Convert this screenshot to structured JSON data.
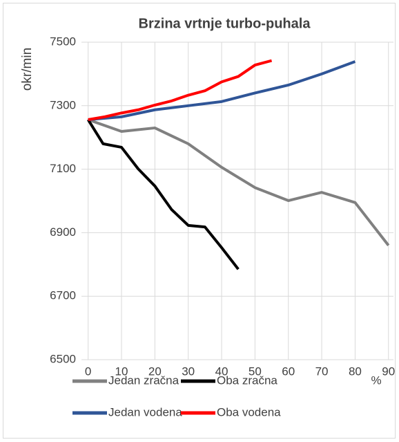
{
  "chart_data": {
    "type": "line",
    "title": "Brzina vrtnje turbo-puhala",
    "ylabel": "okr/min",
    "xlabel": "%",
    "xlim": [
      -2,
      91.5
    ],
    "xticks": [
      0,
      10,
      20,
      30,
      40,
      50,
      60,
      70,
      80,
      90
    ],
    "ylim": [
      6500,
      7500
    ],
    "yticks": [
      6500,
      6700,
      6900,
      7100,
      7300,
      7500
    ],
    "grid": true,
    "series": [
      {
        "name": "Jedan zračna",
        "color": "#808080",
        "x": [
          0,
          10,
          20,
          30,
          40,
          50,
          60,
          70,
          80,
          90
        ],
        "values": [
          7256,
          7219,
          7230,
          7180,
          7106,
          7042,
          7001,
          7027,
          6995,
          6860
        ]
      },
      {
        "name": "Oba zračna",
        "color": "#000000",
        "x": [
          0,
          4.5,
          10,
          15,
          20,
          25,
          30,
          35,
          40,
          45
        ],
        "values": [
          7256,
          7180,
          7169,
          7101,
          7047,
          6973,
          6923,
          6918,
          6853,
          6785
        ]
      },
      {
        "name": "Jedan vodena",
        "color": "#2f5597",
        "x": [
          0,
          10,
          20,
          30,
          40,
          50,
          60,
          70,
          80
        ],
        "values": [
          7256,
          7265,
          7287,
          7300,
          7313,
          7340,
          7365,
          7400,
          7439
        ]
      },
      {
        "name": "Oba vodena",
        "color": "#ff0000",
        "x": [
          0,
          5,
          10,
          15,
          20,
          25,
          30,
          35,
          40,
          45,
          50,
          55
        ],
        "values": [
          7256,
          7265,
          7277,
          7287,
          7302,
          7315,
          7333,
          7347,
          7375,
          7392,
          7428,
          7442
        ]
      }
    ]
  }
}
